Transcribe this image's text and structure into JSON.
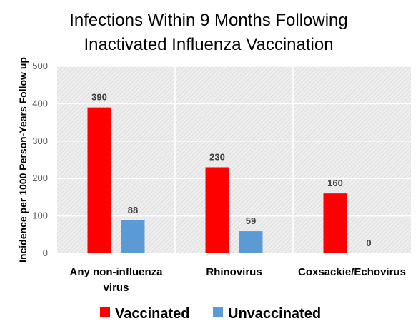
{
  "chart_data": {
    "type": "bar",
    "title": [
      "Infections Within 9 Months Following",
      "Inactivated Influenza Vaccination"
    ],
    "ylabel": "Incidence per 1000 Person-Years Follow up",
    "xlabel": "",
    "ylim": [
      0,
      500
    ],
    "yticks": [
      "0",
      "100",
      "200",
      "300",
      "400",
      "500"
    ],
    "categories": [
      [
        "Any non-influenza",
        "virus"
      ],
      [
        "Rhinovirus"
      ],
      [
        "Coxsackie/Echovirus"
      ]
    ],
    "series": [
      {
        "name": "Vaccinated",
        "color": "#ff0000",
        "values": [
          390,
          230,
          160
        ],
        "labels": [
          "390",
          "230",
          "160"
        ]
      },
      {
        "name": "Unvaccinated",
        "color": "#5b9bd5",
        "values": [
          88,
          59,
          0
        ],
        "labels": [
          "88",
          "59",
          "0"
        ]
      }
    ],
    "grid": true,
    "plot_background": "hatched-gray",
    "legend_position": "bottom"
  }
}
